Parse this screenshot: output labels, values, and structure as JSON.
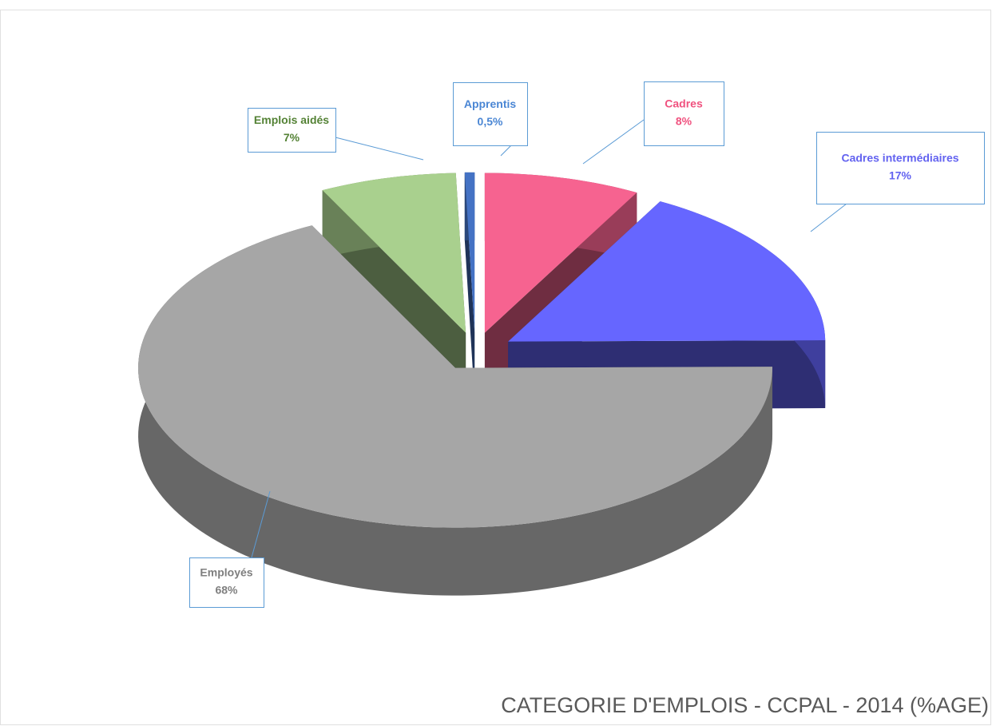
{
  "chart_data": {
    "type": "pie3d",
    "title": "CATEGORIE D'EMPLOIS - CCPAL - 2014 (%AGE)",
    "categories": [
      "Cadres",
      "Cadres intermédiaires",
      "Employés",
      "Emplois aidés",
      "Apprentis"
    ],
    "values": [
      8,
      17,
      68,
      7,
      0.5
    ],
    "value_labels": [
      "8%",
      "17%",
      "68%",
      "7%",
      "0,5%"
    ],
    "colors": [
      "#f66390",
      "#6666ff",
      "#a6a6a6",
      "#a9d08e",
      "#4472c4"
    ],
    "label_colors": [
      "#f0527f",
      "#6262f0",
      "#7f7f7f",
      "#548235",
      "#4a86d4"
    ]
  }
}
